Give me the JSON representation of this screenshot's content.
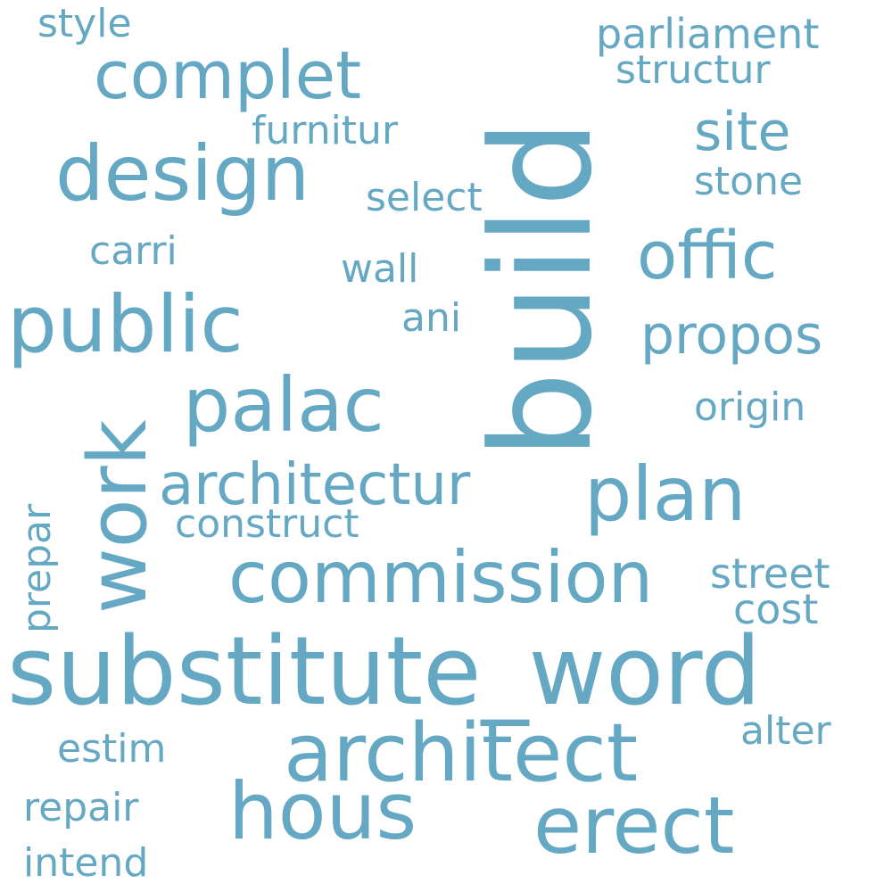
{
  "colors": {
    "word": "#65a8c3",
    "background": "#ffffff"
  },
  "words": {
    "substitute_word": "substitute_word",
    "build": "build",
    "architect": "architect",
    "commission": "commission",
    "design": "design",
    "public": "public",
    "palac": "palac",
    "plan": "plan",
    "work": "work",
    "architectur": "architectur",
    "complet": "complet",
    "erect": "erect",
    "hous": "hous",
    "offic": "offic",
    "propos": "propos",
    "site": "site",
    "parliament": "parliament",
    "structur": "structur",
    "style": "style",
    "furnitur": "furnitur",
    "select": "select",
    "stone": "stone",
    "carri": "carri",
    "wall": "wall",
    "ani": "ani",
    "origin": "origin",
    "construct": "construct",
    "prepar": "prepar",
    "street": "street",
    "cost": "cost",
    "alter": "alter",
    "estim": "estim",
    "repair": "repair",
    "intend": "intend"
  }
}
